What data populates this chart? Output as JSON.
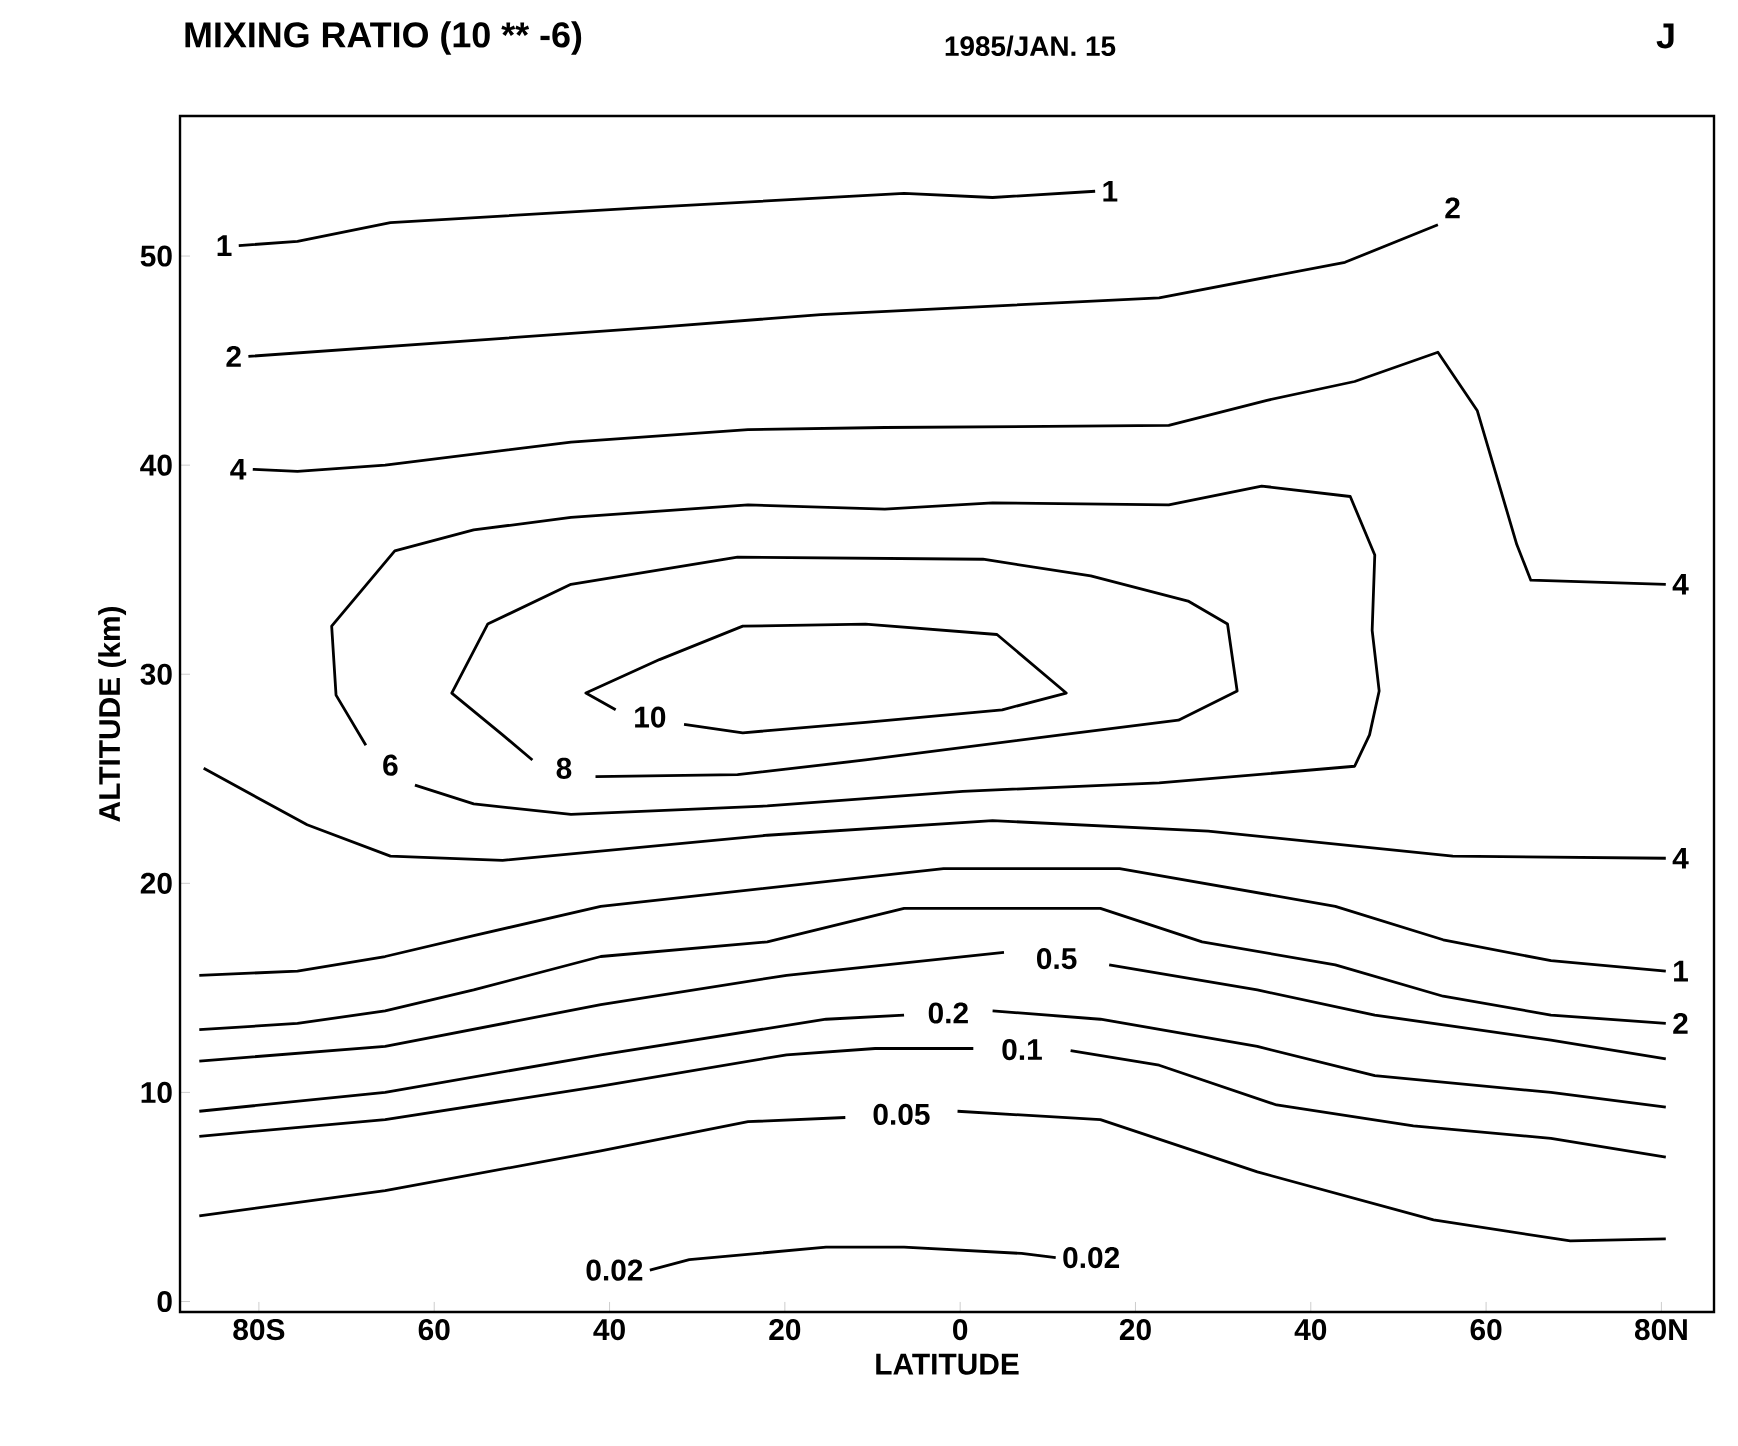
{
  "chart_data": {
    "type": "line",
    "title": "MIXING RATIO (10 ** -6)",
    "subtitle": "1985/JAN. 15",
    "xlabel": "LATITUDE",
    "ylabel": "ALTITUDE (km)",
    "xlim": [
      -89,
      86
    ],
    "ylim": [
      -0.5,
      56.7
    ],
    "xticks": [
      {
        "value": -80,
        "label": "80S"
      },
      {
        "value": -60,
        "label": "60"
      },
      {
        "value": -40,
        "label": "40"
      },
      {
        "value": -20,
        "label": "20"
      },
      0,
      20,
      40,
      60,
      {
        "value": 80,
        "label": "80N"
      }
    ],
    "yticks": [
      0,
      10,
      20,
      30,
      40,
      50
    ],
    "grid": false,
    "marker": "none",
    "line_style": "solid",
    "series": [
      {
        "color": "#000000",
        "x": [
          -82.3,
          -75.6,
          -65.0,
          -36.5,
          -6.4,
          3.7,
          15.4
        ],
        "values": [
          50.5,
          50.7,
          51.6,
          52.3,
          53.0,
          52.8,
          53.1
        ]
      },
      {
        "color": "#000000",
        "x": [
          -81.2,
          -34.3,
          -15.9,
          22.7,
          43.9,
          54.5
        ],
        "values": [
          45.2,
          46.6,
          47.2,
          48.0,
          49.7,
          51.5
        ]
      },
      {
        "color": "#000000",
        "x": [
          -80.7,
          -75.6,
          -65.6,
          -44.4,
          -24.2,
          -8.6,
          23.8,
          35.0,
          45.0,
          54.5,
          59.0,
          63.5,
          65.1,
          80.5
        ],
        "values": [
          39.8,
          39.7,
          40.0,
          41.1,
          41.7,
          41.8,
          41.9,
          43.1,
          44.0,
          45.4,
          42.6,
          36.2,
          34.5,
          34.3
        ]
      },
      {
        "name": "6",
        "color": "#000000",
        "x": [
          -67.8,
          -71.2,
          -71.7,
          -64.5,
          -55.5,
          -44.4,
          -24.2,
          -8.6,
          3.7,
          23.8,
          34.4,
          44.5,
          47.3,
          47.0,
          47.8,
          46.7,
          45.0,
          22.7,
          0.3,
          -22.0,
          -44.4,
          -55.5,
          -62.2
        ],
        "values": [
          26.6,
          29.0,
          32.3,
          35.9,
          36.9,
          37.5,
          38.1,
          37.9,
          38.2,
          38.1,
          39.0,
          38.5,
          35.7,
          32.1,
          29.2,
          27.1,
          25.6,
          24.8,
          24.4,
          23.7,
          23.3,
          23.8,
          24.7
        ]
      },
      {
        "name": "8",
        "color": "#000000",
        "x": [
          -48.8,
          -52.2,
          -58.0,
          -53.9,
          -44.4,
          -25.4,
          2.6,
          14.9,
          26.0,
          30.5,
          31.6,
          24.9,
          11.5,
          -10.8,
          -25.4,
          -41.6
        ],
        "values": [
          25.9,
          27.1,
          29.1,
          32.4,
          34.3,
          35.6,
          35.5,
          34.7,
          33.5,
          32.4,
          29.2,
          27.8,
          27.1,
          25.9,
          25.2,
          25.1
        ]
      },
      {
        "name": "10",
        "color": "#000000",
        "x": [
          -39.3,
          -42.7,
          -34.3,
          -24.8,
          -10.8,
          4.2,
          12.1,
          4.8,
          -10.8,
          -24.8,
          -31.5
        ],
        "values": [
          28.3,
          29.1,
          30.7,
          32.3,
          32.4,
          31.9,
          29.1,
          28.3,
          27.7,
          27.2,
          27.6
        ]
      },
      {
        "color": "#000000",
        "x": [
          -86.3,
          -74.5,
          -65.0,
          -52.2,
          -22.0,
          3.7,
          28.3,
          56.2,
          80.5
        ],
        "values": [
          25.5,
          22.8,
          21.3,
          21.1,
          22.3,
          23.0,
          22.5,
          21.3,
          21.2
        ]
      },
      {
        "color": "#000000",
        "x": [
          -86.8,
          -75.6,
          -65.6,
          -55.5,
          -41.0,
          -1.9,
          18.2,
          42.8,
          55.1,
          67.4,
          80.5
        ],
        "values": [
          15.6,
          15.8,
          16.5,
          17.5,
          18.9,
          20.7,
          20.7,
          18.9,
          17.3,
          16.3,
          15.8
        ]
      },
      {
        "color": "#000000",
        "x": [
          -86.8,
          -75.6,
          -65.6,
          -55.5,
          -41.0,
          -22.0,
          -6.4,
          16.0,
          27.6,
          42.8,
          55.1,
          67.4,
          80.5
        ],
        "values": [
          13.0,
          13.3,
          13.9,
          14.9,
          16.5,
          17.2,
          18.8,
          18.8,
          17.2,
          16.1,
          14.6,
          13.7,
          13.3
        ]
      },
      {
        "name": "0.5",
        "color": "#000000",
        "x": [
          -86.8,
          -65.6,
          -41.0,
          -19.8,
          5.0,
          null,
          17.0,
          33.9,
          47.3,
          67.4,
          80.5
        ],
        "values": [
          11.5,
          12.2,
          14.2,
          15.6,
          16.7,
          null,
          16.1,
          14.9,
          13.7,
          12.5,
          11.6
        ]
      },
      {
        "name": "0.2",
        "color": "#000000",
        "x": [
          -86.8,
          -65.6,
          -41.0,
          -15.3,
          -6.4,
          null,
          3.7,
          16.0,
          33.9,
          47.3,
          67.4,
          80.5
        ],
        "values": [
          9.1,
          10.0,
          11.8,
          13.5,
          13.7,
          null,
          13.9,
          13.5,
          12.2,
          10.8,
          10.0,
          9.3
        ]
      },
      {
        "name": "0.1",
        "color": "#000000",
        "x": [
          -86.8,
          -65.6,
          -41.0,
          -19.8,
          -9.7,
          1.5,
          null,
          12.6,
          22.7,
          36.1,
          51.7,
          67.4,
          80.5
        ],
        "values": [
          7.9,
          8.7,
          10.3,
          11.8,
          12.1,
          12.1,
          null,
          12.0,
          11.3,
          9.4,
          8.4,
          7.8,
          6.9
        ]
      },
      {
        "name": "0.05",
        "color": "#000000",
        "x": [
          -86.8,
          -65.6,
          -41.0,
          -24.2,
          -13.1,
          null,
          -0.3,
          16.0,
          33.9,
          54.0,
          69.6,
          80.5
        ],
        "values": [
          4.1,
          5.3,
          7.2,
          8.6,
          8.8,
          null,
          9.1,
          8.7,
          6.2,
          3.9,
          2.9,
          3.0
        ]
      },
      {
        "color": "#000000",
        "x": [
          -35.4,
          -30.9,
          -15.3,
          -6.4,
          7.0,
          10.9
        ],
        "values": [
          1.5,
          2.0,
          2.6,
          2.6,
          2.3,
          2.1
        ]
      }
    ],
    "annotations": [
      "J",
      {
        "text": "1",
        "x": -82.3,
        "y": 50.5
      },
      {
        "text": "1",
        "x": 15.4,
        "y": 53.1
      },
      {
        "text": "2",
        "x": -81.2,
        "y": 45.2
      },
      {
        "text": "2",
        "x": 54.5,
        "y": 51.5
      },
      {
        "text": "4",
        "x": -80.7,
        "y": 39.8
      },
      {
        "text": "4",
        "x": 80.5,
        "y": 34.3
      },
      {
        "text": "4",
        "x": 80.5,
        "y": 21.2
      },
      {
        "text": "1",
        "x": 80.5,
        "y": 15.8
      },
      {
        "text": "2",
        "x": 80.5,
        "y": 13.3
      },
      {
        "text": "0.02",
        "x": -35.4,
        "y": 1.5
      },
      {
        "text": "0.02",
        "x": 10.9,
        "y": 2.1
      }
    ]
  }
}
